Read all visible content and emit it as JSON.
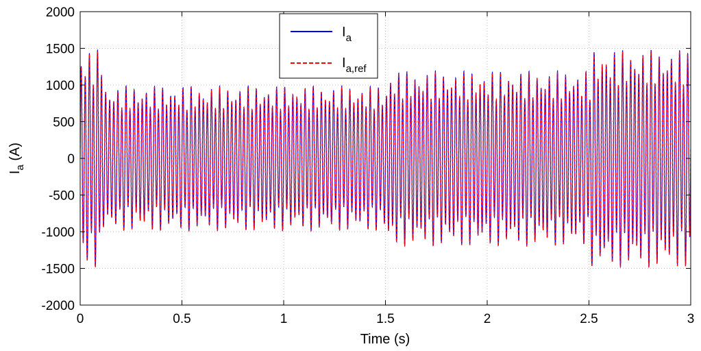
{
  "chart_data": {
    "type": "line",
    "title": "",
    "xlabel": "Time (s)",
    "ylabel": {
      "main": "I",
      "sub": "a",
      "unit": " (A)"
    },
    "xlim": [
      0,
      3
    ],
    "ylim": [
      -2000,
      2000
    ],
    "xticks": [
      0,
      0.5,
      1,
      1.5,
      2,
      2.5,
      3
    ],
    "xtick_labels": [
      "0",
      "0.5",
      "1",
      "1.5",
      "2",
      "2.5",
      "3"
    ],
    "yticks": [
      -2000,
      -1500,
      -1000,
      -500,
      0,
      500,
      1000,
      1500,
      2000
    ],
    "ytick_labels": [
      "-2000",
      "-1500",
      "-1000",
      "-500",
      "0",
      "500",
      "1000",
      "1500",
      "2000"
    ],
    "grid": true,
    "legend_position": "top-center",
    "frequency_hz": 50,
    "envelope": {
      "t": [
        0,
        0.1,
        0.1,
        0.11,
        0.11,
        1.51,
        1.51,
        2.51,
        2.51,
        3.0
      ],
      "amplitude": [
        1230,
        1230,
        1340,
        1340,
        820,
        820,
        990,
        990,
        1230,
        1230
      ]
    },
    "series": [
      {
        "name": "I",
        "name_sub": "a",
        "color": "#0000ff",
        "style": "solid"
      },
      {
        "name": "I",
        "name_sub": "a,ref",
        "color": "#ff0000",
        "style": "dashed"
      }
    ]
  }
}
